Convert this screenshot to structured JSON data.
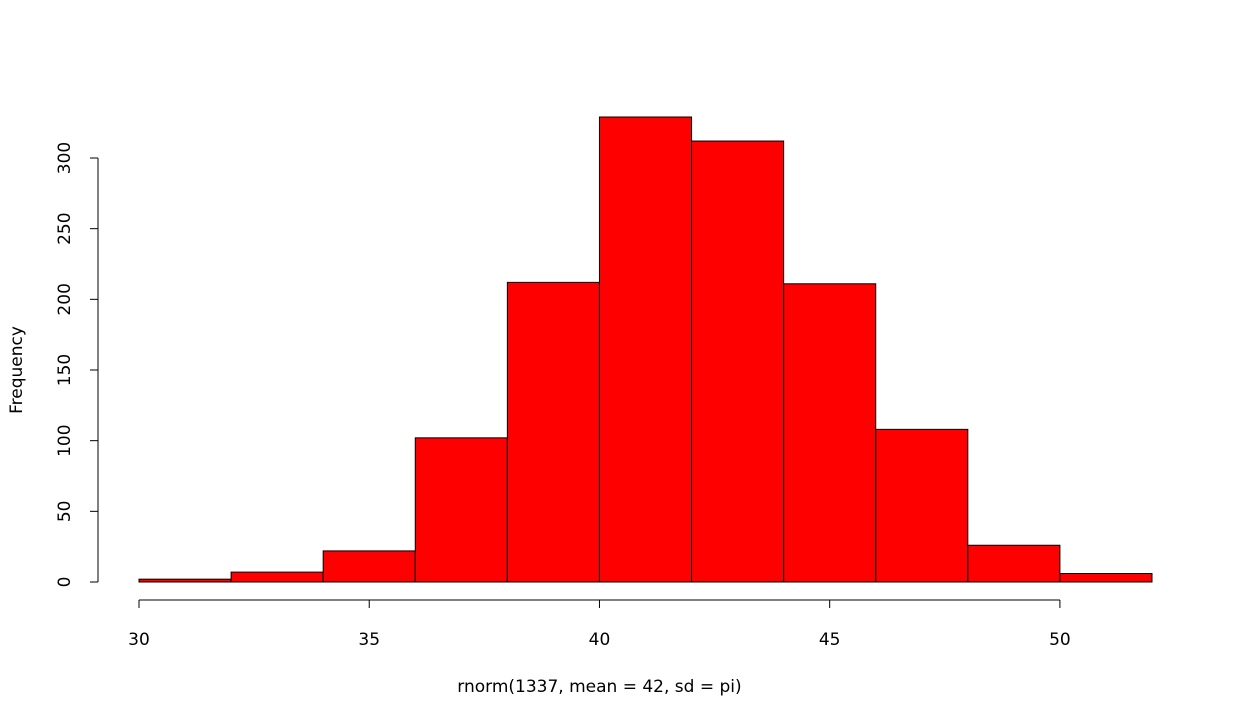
{
  "chart_data": {
    "type": "bar",
    "subtype": "histogram",
    "title": "",
    "xlabel": "rnorm(1337, mean = 42, sd = pi)",
    "ylabel": "Frequency",
    "bin_edges": [
      30,
      32,
      34,
      36,
      38,
      40,
      42,
      44,
      46,
      48,
      50,
      52
    ],
    "values": [
      2,
      7,
      22,
      102,
      212,
      329,
      312,
      211,
      108,
      26,
      6
    ],
    "xticks": [
      30,
      35,
      40,
      45,
      50
    ],
    "yticks": [
      0,
      50,
      100,
      150,
      200,
      250,
      300
    ],
    "xlim": [
      30,
      52
    ],
    "ylim": [
      0,
      330
    ],
    "grid": false,
    "bar_fill": "#ff0000",
    "bar_stroke": "#000000"
  }
}
